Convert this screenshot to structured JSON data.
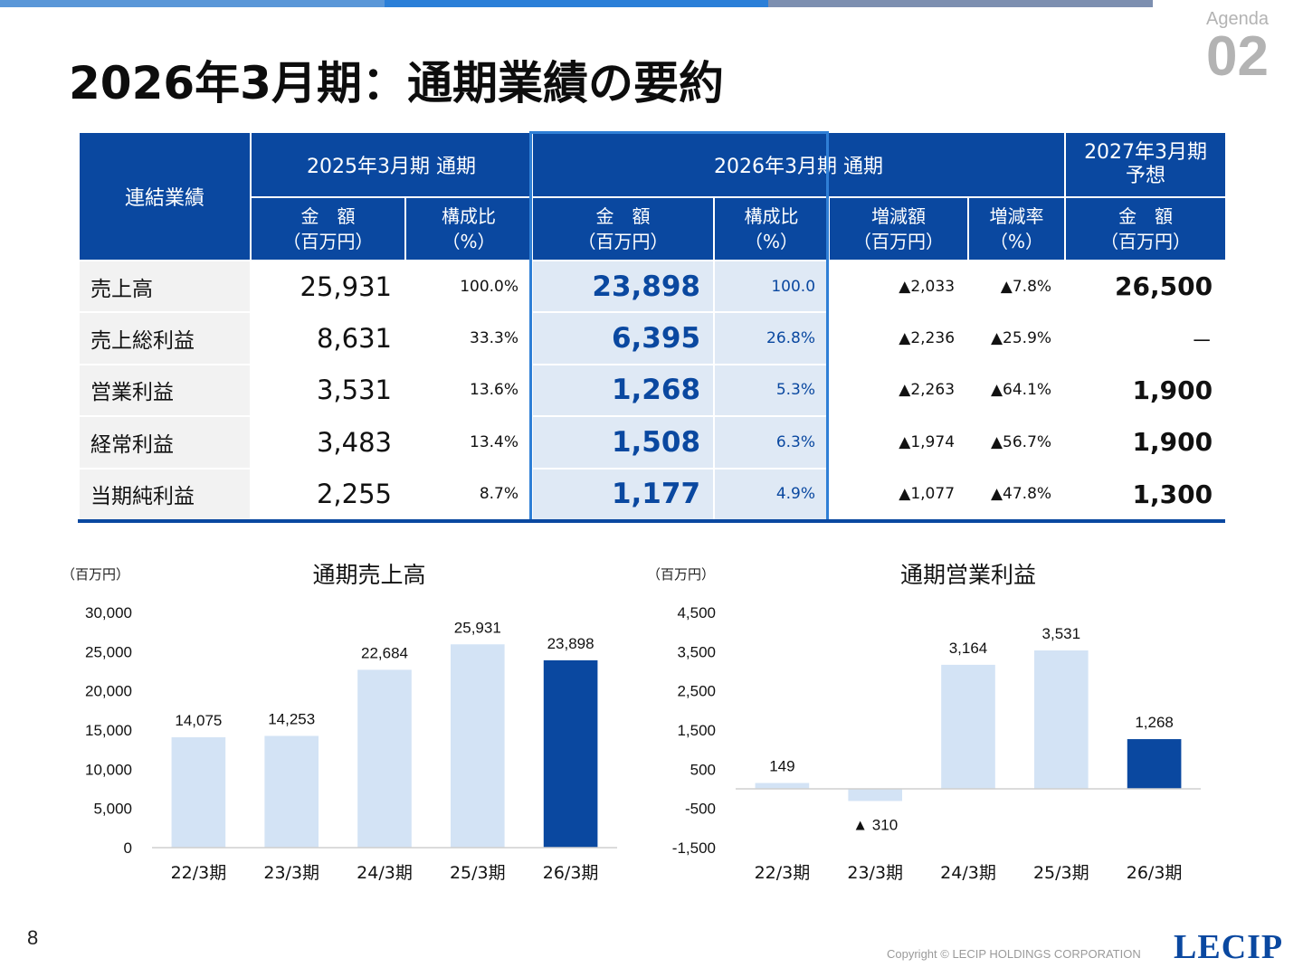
{
  "header": {
    "agenda_label": "Agenda",
    "agenda_number": "02",
    "title": "2026年3月期：通期業績の要約",
    "bar_colors": [
      "#5a97d8",
      "#2b7fd8",
      "#7d8fb0"
    ]
  },
  "table": {
    "corner": "連結業績",
    "groups": {
      "fy2025": "2025年3月期 通期",
      "fy2026": "2026年3月期 通期",
      "fy2027_line1": "2027年3月期",
      "fy2027_line2": "予想"
    },
    "subheaders": {
      "amount_l1": "金　額",
      "amount_l2": "（百万円）",
      "ratio_l1": "構成比",
      "ratio_l2": "（%）",
      "change_l1": "増減額",
      "change_l2": "（百万円）",
      "rate_l1": "増減率",
      "rate_l2": "（%）"
    },
    "rows": [
      {
        "label": "売上高",
        "fy25_amount": "25,931",
        "fy25_ratio": "100.0%",
        "fy26_amount": "23,898",
        "fy26_ratio": "100.0",
        "change": "▲2,033",
        "rate": "▲7.8%",
        "fy27": "26,500"
      },
      {
        "label": "売上総利益",
        "fy25_amount": "8,631",
        "fy25_ratio": "33.3%",
        "fy26_amount": "6,395",
        "fy26_ratio": "26.8%",
        "change": "▲2,236",
        "rate": "▲25.9%",
        "fy27": "－"
      },
      {
        "label": "営業利益",
        "fy25_amount": "3,531",
        "fy25_ratio": "13.6%",
        "fy26_amount": "1,268",
        "fy26_ratio": "5.3%",
        "change": "▲2,263",
        "rate": "▲64.1%",
        "fy27": "1,900"
      },
      {
        "label": "経常利益",
        "fy25_amount": "3,483",
        "fy25_ratio": "13.4%",
        "fy26_amount": "1,508",
        "fy26_ratio": "6.3%",
        "change": "▲1,974",
        "rate": "▲56.7%",
        "fy27": "1,900"
      },
      {
        "label": "当期純利益",
        "fy25_amount": "2,255",
        "fy25_ratio": "8.7%",
        "fy26_amount": "1,177",
        "fy26_ratio": "4.9%",
        "change": "▲1,077",
        "rate": "▲47.8%",
        "fy27": "1,300"
      }
    ]
  },
  "chart_data": [
    {
      "type": "bar",
      "title": "通期売上高",
      "ylabel": "（百万円）",
      "categories": [
        "22/3期",
        "23/3期",
        "24/3期",
        "25/3期",
        "26/3期"
      ],
      "values": [
        14075,
        14253,
        22684,
        25931,
        23898
      ],
      "value_labels": [
        "14,075",
        "14,253",
        "22,684",
        "25,931",
        "23,898"
      ],
      "ylim": [
        0,
        30000
      ],
      "yticks": [
        0,
        5000,
        10000,
        15000,
        20000,
        25000,
        30000
      ],
      "ytick_labels": [
        "0",
        "5,000",
        "10,000",
        "15,000",
        "20,000",
        "25,000",
        "30,000"
      ],
      "highlight_index": 4,
      "bar_color": "#d3e3f5",
      "highlight_color": "#0a48a0",
      "grid": false
    },
    {
      "type": "bar",
      "title": "通期営業利益",
      "ylabel": "（百万円）",
      "categories": [
        "22/3期",
        "23/3期",
        "24/3期",
        "25/3期",
        "26/3期"
      ],
      "values": [
        149,
        -310,
        3164,
        3531,
        1268
      ],
      "value_labels": [
        "149",
        "▲ 310",
        "3,164",
        "3,531",
        "1,268"
      ],
      "ylim": [
        -1500,
        4500
      ],
      "yticks": [
        -1500,
        -500,
        500,
        1500,
        2500,
        3500,
        4500
      ],
      "ytick_labels": [
        "-1,500",
        "-500",
        "500",
        "1,500",
        "2,500",
        "3,500",
        "4,500"
      ],
      "highlight_index": 4,
      "bar_color": "#d3e3f5",
      "highlight_color": "#0a48a0",
      "grid": false
    }
  ],
  "footer": {
    "page_number": "8",
    "copyright": "Copyright © LECIP HOLDINGS CORPORATION",
    "logo": "LECIP"
  }
}
